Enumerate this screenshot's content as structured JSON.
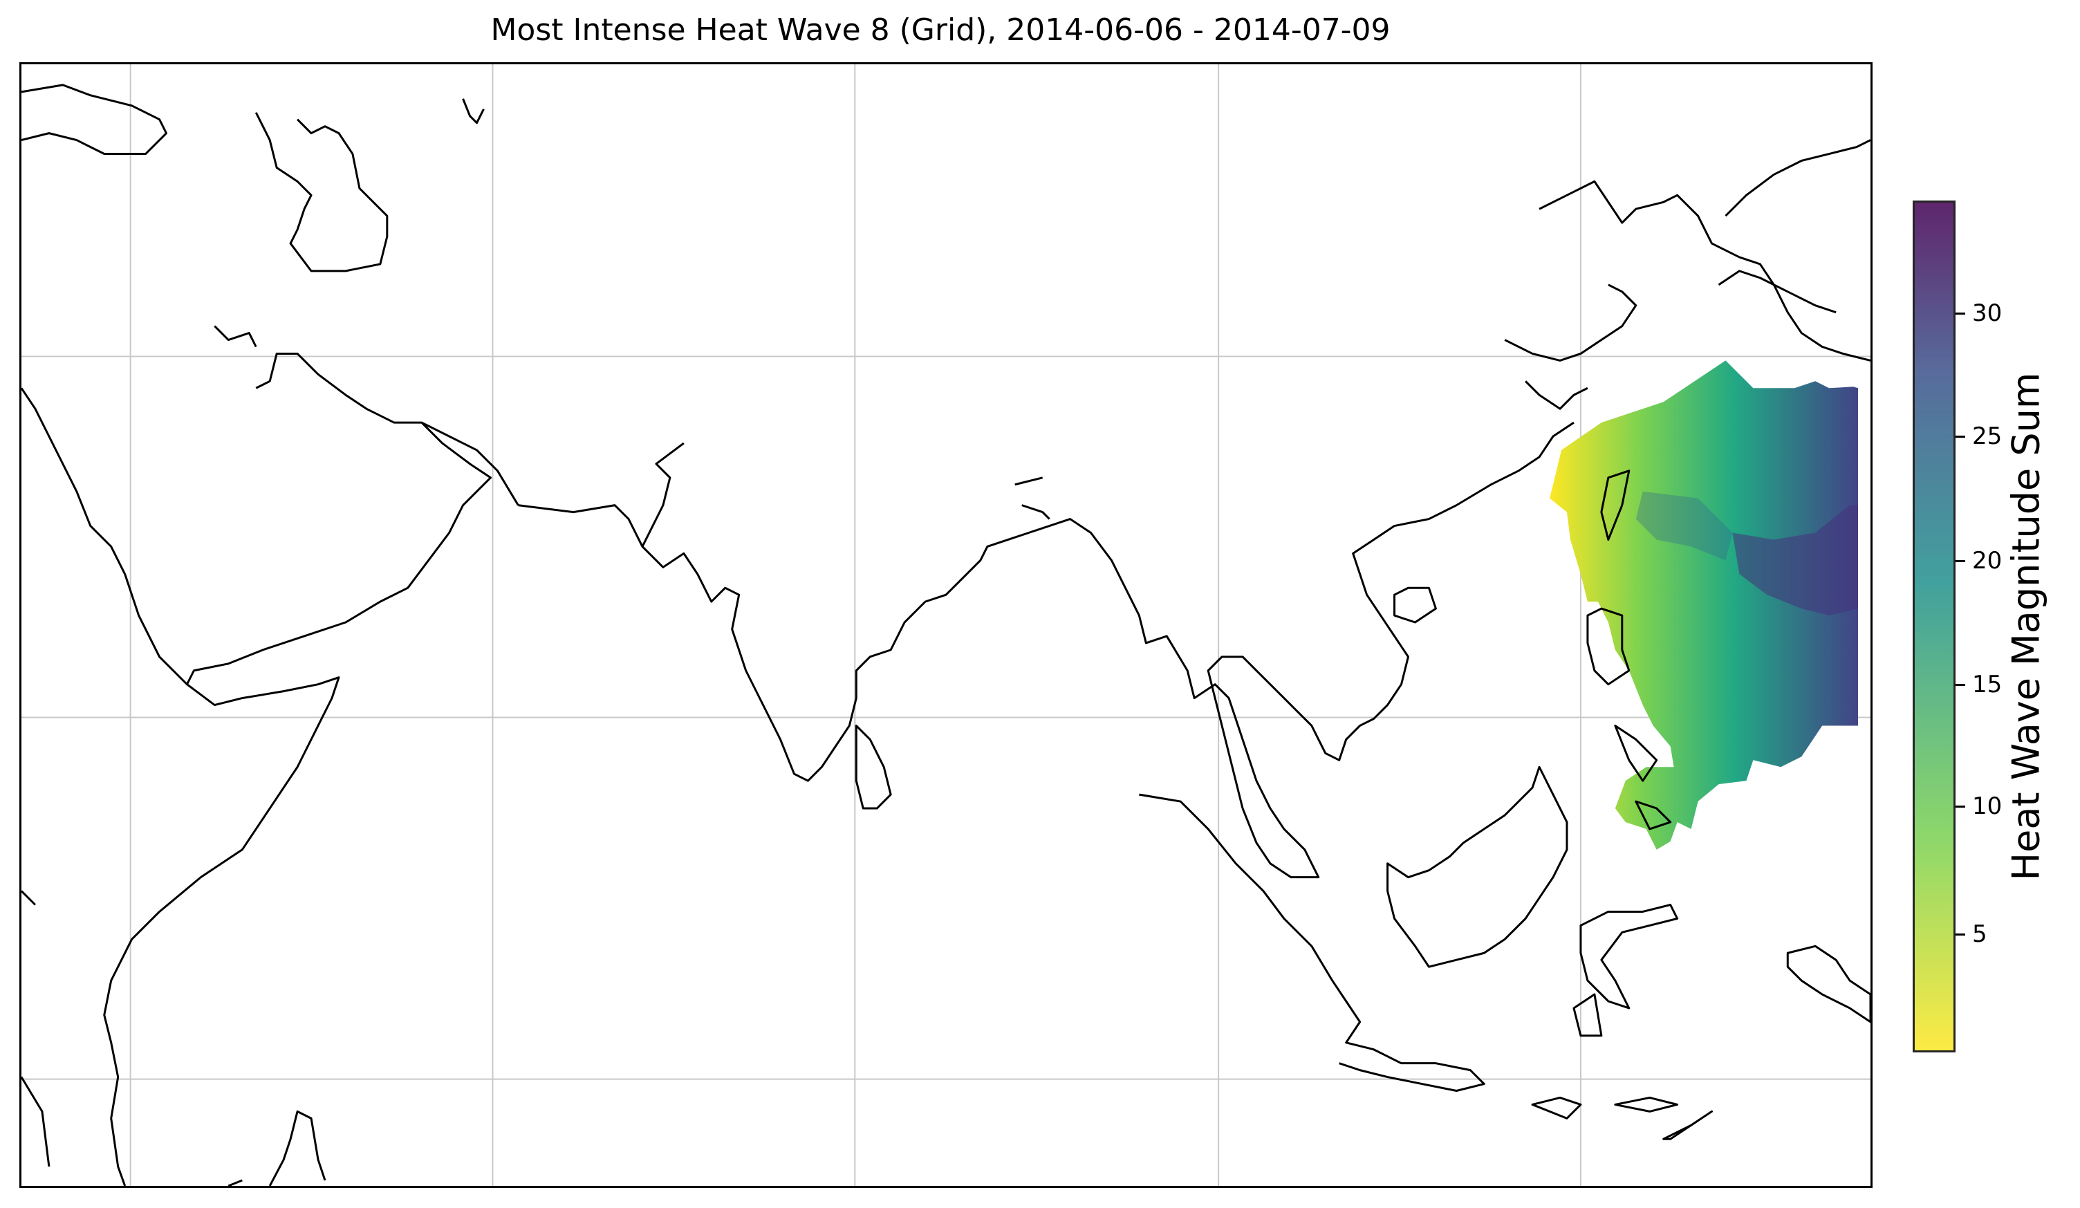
{
  "title": "Most Intense Heat Wave 8 (Grid), 2014-06-06 - 2014-07-09",
  "colorbar": {
    "label": "Heat Wave Magnitude Sum",
    "ticks": [
      "5",
      "10",
      "15",
      "20",
      "25",
      "30"
    ],
    "colormap": "viridis_r",
    "colors": {
      "low": "#fde725",
      "mid": "#21918c",
      "high": "#440154"
    }
  },
  "map": {
    "projection": "PlateCarree",
    "gridlines": true,
    "coastline_color": "#000000",
    "heatwave_region": "East Asia / Western Pacific"
  }
}
